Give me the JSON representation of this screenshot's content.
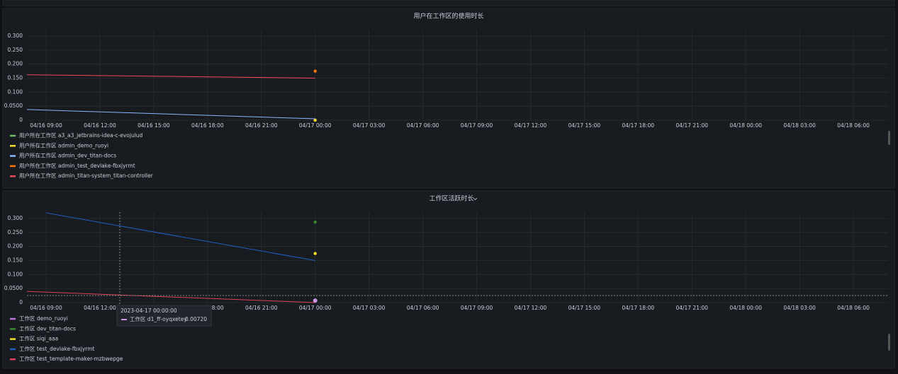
{
  "chart_data": [
    {
      "type": "line",
      "title": "用户在工作区的使用时长",
      "xlim": [
        "2023-04-16 07:56:00",
        "2023-04-18 07:56:00"
      ],
      "xticks": [
        {
          "value": "2023-04-16 09:00:00",
          "label": "04/16 09:00"
        },
        {
          "value": "2023-04-16 12:00:00",
          "label": "04/16 12:00"
        },
        {
          "value": "2023-04-16 15:00:00",
          "label": "04/16 15:00"
        },
        {
          "value": "2023-04-16 18:00:00",
          "label": "04/16 18:00"
        },
        {
          "value": "2023-04-16 21:00:00",
          "label": "04/16 21:00"
        },
        {
          "value": "2023-04-17 00:00:00",
          "label": "04/17 00:00"
        },
        {
          "value": "2023-04-17 03:00:00",
          "label": "04/17 03:00"
        },
        {
          "value": "2023-04-17 06:00:00",
          "label": "04/17 06:00"
        },
        {
          "value": "2023-04-17 09:00:00",
          "label": "04/17 09:00"
        },
        {
          "value": "2023-04-17 12:00:00",
          "label": "04/17 12:00"
        },
        {
          "value": "2023-04-17 15:00:00",
          "label": "04/17 15:00"
        },
        {
          "value": "2023-04-17 18:00:00",
          "label": "04/17 18:00"
        },
        {
          "value": "2023-04-17 21:00:00",
          "label": "04/17 21:00"
        },
        {
          "value": "2023-04-18 00:00:00",
          "label": "04/18 00:00"
        },
        {
          "value": "2023-04-18 03:00:00",
          "label": "04/18 03:00"
        },
        {
          "value": "2023-04-18 06:00:00",
          "label": "04/18 06:00"
        }
      ],
      "ylim": [
        0,
        0.3
      ],
      "yticks": [
        0,
        {
          "value": 0.05,
          "label": "0.0500"
        },
        {
          "value": 0.1,
          "label": "0.100"
        },
        {
          "value": 0.15,
          "label": "0.150"
        },
        {
          "value": 0.2,
          "label": "0.200"
        },
        {
          "value": 0.25,
          "label": "0.250"
        },
        {
          "value": 0.3,
          "label": "0.300"
        }
      ],
      "grid": true,
      "series": [
        {
          "name": "用户所在工作区 a3_a3_jetbrains-idea-c-evojulud",
          "color": "#73bf69",
          "x": [
            "2023-04-17 00:00:00"
          ],
          "values": [
            0
          ]
        },
        {
          "name": "用户所在工作区 admin_demo_ruoyi",
          "color": "#fade2a",
          "x": [
            "2023-04-17 00:00:00"
          ],
          "values": [
            0
          ]
        },
        {
          "name": "用户所在工作区 admin_dev_titan-docs",
          "color": "#8ab8ff",
          "x": [
            "2023-04-16 07:56:00",
            "2023-04-17 00:00:00"
          ],
          "values": [
            0.038,
            0.005
          ]
        },
        {
          "name": "用户所在工作区 admin_test_devlake-fbxjyrmt",
          "color": "#ff780a",
          "x": [
            "2023-04-17 00:00:00"
          ],
          "values": [
            0.175
          ]
        },
        {
          "name": "用户所在工作区 admin_titan-system_titan-controller",
          "color": "#f2495c",
          "x": [
            "2023-04-16 07:56:00",
            "2023-04-17 00:00:00"
          ],
          "values": [
            0.162,
            0.15
          ]
        }
      ]
    },
    {
      "type": "line",
      "title": "工作区活跃时长",
      "xlim": [
        "2023-04-16 07:56:00",
        "2023-04-18 07:56:00"
      ],
      "xticks": [
        {
          "value": "2023-04-16 09:00:00",
          "label": "04/16 09:00"
        },
        {
          "value": "2023-04-16 12:00:00",
          "label": "04/16 12:00"
        },
        {
          "value": "2023-04-16 15:00:00",
          "label": "04/16 15:00"
        },
        {
          "value": "2023-04-16 18:00:00",
          "label": "04/16 18:00"
        },
        {
          "value": "2023-04-16 21:00:00",
          "label": "04/16 21:00"
        },
        {
          "value": "2023-04-17 00:00:00",
          "label": "04/17 00:00"
        },
        {
          "value": "2023-04-17 03:00:00",
          "label": "04/17 03:00"
        },
        {
          "value": "2023-04-17 06:00:00",
          "label": "04/17 06:00"
        },
        {
          "value": "2023-04-17 09:00:00",
          "label": "04/17 09:00"
        },
        {
          "value": "2023-04-17 12:00:00",
          "label": "04/17 12:00"
        },
        {
          "value": "2023-04-17 15:00:00",
          "label": "04/17 15:00"
        },
        {
          "value": "2023-04-17 18:00:00",
          "label": "04/17 18:00"
        },
        {
          "value": "2023-04-17 21:00:00",
          "label": "04/17 21:00"
        },
        {
          "value": "2023-04-18 00:00:00",
          "label": "04/18 00:00"
        },
        {
          "value": "2023-04-18 03:00:00",
          "label": "04/18 03:00"
        },
        {
          "value": "2023-04-18 06:00:00",
          "label": "04/18 06:00"
        }
      ],
      "ylim": [
        0,
        0.3
      ],
      "yticks": [
        0,
        {
          "value": 0.05,
          "label": "0.0500"
        },
        {
          "value": 0.1,
          "label": "0.100"
        },
        {
          "value": 0.15,
          "label": "0.150"
        },
        {
          "value": 0.2,
          "label": "0.200"
        },
        {
          "value": 0.25,
          "label": "0.250"
        },
        {
          "value": 0.3,
          "label": "0.300"
        }
      ],
      "grid": true,
      "series": [
        {
          "name": "工作区 demo_ruoyi",
          "color": "#b877d9",
          "x": [
            "2023-04-17 00:00:00"
          ],
          "values": [
            0.005
          ]
        },
        {
          "name": "工作区 dev_titan-docs",
          "color": "#37872d",
          "x": [
            "2023-04-17 00:00:00"
          ],
          "values": [
            0.287
          ]
        },
        {
          "name": "工作区 siqi_aaa",
          "color": "#fade2a",
          "x": [
            "2023-04-17 00:00:00"
          ],
          "values": [
            0.175
          ]
        },
        {
          "name": "工作区 test_devlake-fbxjyrmt",
          "color": "#1f60c4",
          "x": [
            "2023-04-16 09:00:00",
            "2023-04-17 00:00:00"
          ],
          "values": [
            0.32,
            0.15
          ]
        },
        {
          "name": "工作区 test_template-maker-mzbwepge",
          "color": "#e0405a",
          "x": [
            "2023-04-16 07:56:00",
            "2023-04-17 00:00:00"
          ],
          "values": [
            0.04,
            0
          ]
        }
      ],
      "tooltip": {
        "time": "2023-04-17 00:00:00",
        "name": "工作区 d1_ff-oyqxetey",
        "color": "#ca95e5",
        "value": 0.0072,
        "value_label": "0.00720"
      }
    }
  ]
}
